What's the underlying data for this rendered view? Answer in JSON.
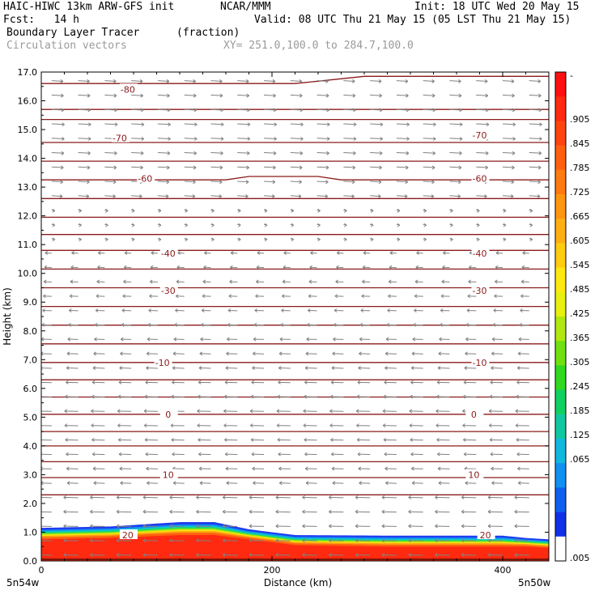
{
  "header": {
    "model": "HAIC-HIWC 13km ARW-GFS init",
    "org": "NCAR/MMM",
    "init": "Init: 18 UTC Wed 20 May 15",
    "fcst": "Fcst:   14 h",
    "valid": "Valid: 08 UTC Thu 21 May 15 (05 LST Thu 21 May 15)",
    "field": "Boundary Layer Tracer",
    "units": "(fraction)",
    "vectors": "Circulation vectors",
    "xy": "XY= 251.0,100.0 to 284.7,100.0"
  },
  "chart_data": {
    "type": "heatmap",
    "xlabel": "Distance (km)",
    "ylabel": "Height (km)",
    "xlim": [
      0,
      440
    ],
    "ylim": [
      0,
      17
    ],
    "x_ticks": [
      0,
      200,
      400
    ],
    "y_ticks": [
      "0.0",
      "1.0",
      "2.0",
      "3.0",
      "4.0",
      "5.0",
      "6.0",
      "7.0",
      "8.0",
      "9.0",
      "10.0",
      "11.0",
      "12.0",
      "13.0",
      "14.0",
      "15.0",
      "16.0",
      "17.0"
    ],
    "x_end_labels": {
      "left": "5n54w",
      "right": "5n50w"
    },
    "colorbar": {
      "labels": [
        "-",
        ".905",
        ".845",
        ".785",
        ".725",
        ".665",
        ".605",
        ".545",
        ".485",
        ".425",
        ".365",
        ".305",
        ".245",
        ".185",
        ".125",
        ".065",
        ".005"
      ],
      "colors": [
        "#ff1010",
        "#ff2a10",
        "#ff4410",
        "#ff6010",
        "#ff7a10",
        "#ff9610",
        "#ffb010",
        "#ffcc10",
        "#ffe810",
        "#e8f010",
        "#b0e810",
        "#70e010",
        "#30d820",
        "#10d060",
        "#10c8a0",
        "#10b8e0",
        "#1090f0",
        "#1060f0",
        "#1030e8",
        "#ffffff"
      ],
      "color_labels": [
        "red",
        "orange",
        "yellow",
        "green",
        "cyan",
        "blue",
        "white"
      ]
    },
    "tracer_layer": {
      "description_values": "Boundary layer tracer top height (km) vs distance (km)",
      "x": [
        0,
        60,
        120,
        150,
        180,
        220,
        300,
        400,
        420,
        440
      ],
      "top": [
        1.15,
        1.2,
        1.35,
        1.35,
        1.1,
        0.9,
        0.88,
        0.88,
        0.8,
        0.75
      ],
      "core_top": [
        0.75,
        0.8,
        0.9,
        0.9,
        0.75,
        0.55,
        0.5,
        0.5,
        0.5,
        0.45
      ]
    },
    "contours": {
      "labels": [
        "-80",
        "-70",
        "-70",
        "-60",
        "-60",
        "-40",
        "-40",
        "-30",
        "-30",
        "-10",
        "-10",
        "0",
        "0",
        "10",
        "10",
        "20",
        "20"
      ],
      "label_x": [
        75,
        68,
        380,
        90,
        380,
        110,
        380,
        110,
        380,
        105,
        380,
        110,
        375,
        110,
        375,
        75,
        385
      ],
      "label_y": [
        16.4,
        14.7,
        14.8,
        13.3,
        13.3,
        10.7,
        10.7,
        9.4,
        9.4,
        6.9,
        6.9,
        5.1,
        5.1,
        3.0,
        3.0,
        0.9,
        0.9
      ]
    },
    "isotherm_heights": [
      16.6,
      15.7,
      15.35,
      14.55,
      13.9,
      13.25,
      12.6,
      11.95,
      11.35,
      10.8,
      10.15,
      9.5,
      8.85,
      8.2,
      7.55,
      6.9,
      6.3,
      5.7,
      5.1,
      4.5,
      4.0,
      3.45,
      2.9,
      2.3
    ]
  }
}
